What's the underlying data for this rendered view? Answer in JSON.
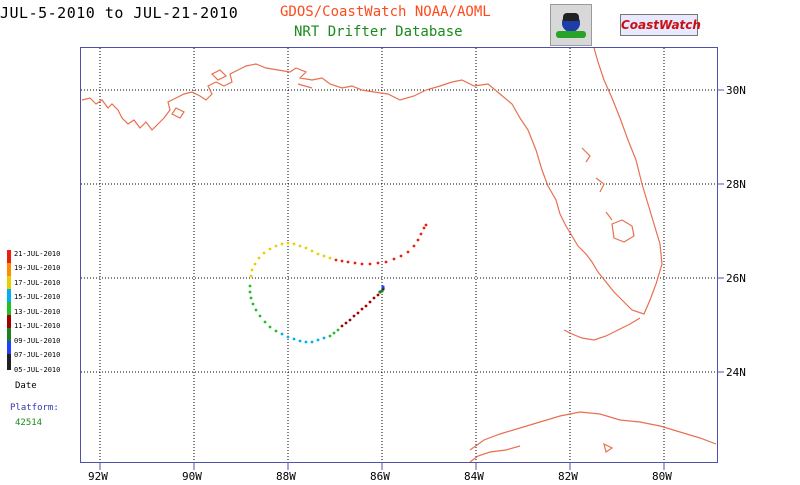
{
  "header": {
    "date_range": "JUL-5-2010 to JUL-21-2010",
    "org": "GDOS/CoastWatch  NOAA/AOML",
    "database": "NRT Drifter Database",
    "coastwatch_logo": "CoastWatch"
  },
  "legend": {
    "items": [
      {
        "label": "21-JUL-2010",
        "color": "#e82010"
      },
      {
        "label": "19-JUL-2010",
        "color": "#ff8c00"
      },
      {
        "label": "17-JUL-2010",
        "color": "#e8d000"
      },
      {
        "label": "15-JUL-2010",
        "color": "#00b0e8"
      },
      {
        "label": "13-JUL-2010",
        "color": "#20c020"
      },
      {
        "label": "11-JUL-2010",
        "color": "#a00000"
      },
      {
        "label": "09-JUL-2010",
        "color": "#208020"
      },
      {
        "label": "07-JUL-2010",
        "color": "#2040ff"
      },
      {
        "label": "05-JUL-2010",
        "color": "#202020"
      }
    ],
    "title": "Date"
  },
  "platform": {
    "label": "Platform:",
    "id": "42514"
  },
  "map": {
    "lon_ticks": [
      "92W",
      "90W",
      "88W",
      "86W",
      "84W",
      "82W",
      "80W"
    ],
    "lat_ticks": [
      "30N",
      "28N",
      "26N",
      "24N"
    ],
    "coast_color": "#e87050",
    "frame_color": "#5050b0"
  }
}
